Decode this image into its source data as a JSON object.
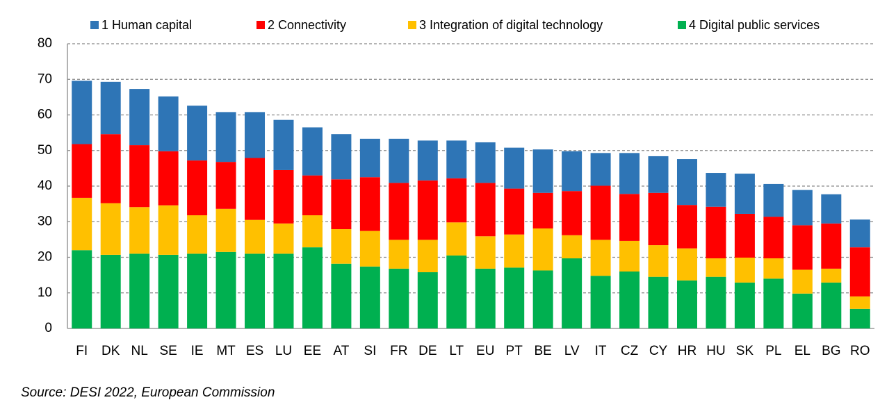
{
  "chart_data": {
    "type": "stacked_bar",
    "categories": [
      "FI",
      "DK",
      "NL",
      "SE",
      "IE",
      "MT",
      "ES",
      "LU",
      "EE",
      "AT",
      "SI",
      "FR",
      "DE",
      "LT",
      "EU",
      "PT",
      "BE",
      "LV",
      "IT",
      "CZ",
      "CY",
      "HR",
      "HU",
      "SK",
      "PL",
      "EL",
      "BG",
      "RO"
    ],
    "series": [
      {
        "name": "1 Human capital",
        "color": "#2e75b6",
        "values": [
          17.8,
          14.7,
          15.8,
          15.4,
          15.4,
          14.0,
          12.9,
          14.1,
          13.5,
          12.7,
          10.8,
          12.4,
          11.2,
          10.6,
          11.4,
          11.5,
          12.2,
          11.2,
          9.2,
          11.5,
          10.3,
          12.9,
          9.5,
          11.3,
          9.2,
          9.9,
          8.2,
          7.8
        ]
      },
      {
        "name": "2 Connectivity",
        "color": "#ff0000",
        "values": [
          15.1,
          19.4,
          17.4,
          15.2,
          15.4,
          13.2,
          17.4,
          15.0,
          11.2,
          14.0,
          15.1,
          16.0,
          16.7,
          12.4,
          15.0,
          12.9,
          10.0,
          12.4,
          15.2,
          13.2,
          14.7,
          12.2,
          14.5,
          12.3,
          11.7,
          12.5,
          12.7,
          13.8
        ]
      },
      {
        "name": "3 Integration of digital technology",
        "color": "#ffc000",
        "values": [
          14.7,
          14.5,
          13.1,
          13.9,
          10.8,
          12.1,
          9.5,
          8.5,
          9.0,
          9.7,
          10.0,
          8.1,
          9.1,
          9.3,
          9.1,
          9.3,
          11.8,
          6.5,
          10.1,
          8.6,
          8.9,
          9.0,
          5.2,
          7.0,
          5.7,
          6.7,
          3.9,
          3.5
        ]
      },
      {
        "name": "4 Digital public services",
        "color": "#00b050",
        "values": [
          22.0,
          20.7,
          21.0,
          20.7,
          21.0,
          21.5,
          21.0,
          21.0,
          22.8,
          18.2,
          17.4,
          16.8,
          15.8,
          20.5,
          16.8,
          17.1,
          16.3,
          19.7,
          14.8,
          16.0,
          14.5,
          13.5,
          14.5,
          12.9,
          14.0,
          9.8,
          12.9,
          5.5
        ]
      }
    ],
    "ylim": [
      0,
      80
    ],
    "yticks": [
      0,
      10,
      20,
      30,
      40,
      50,
      60,
      70,
      80
    ],
    "grid": true,
    "legend": "top",
    "source": "Source: DESI 2022, European Commission"
  }
}
